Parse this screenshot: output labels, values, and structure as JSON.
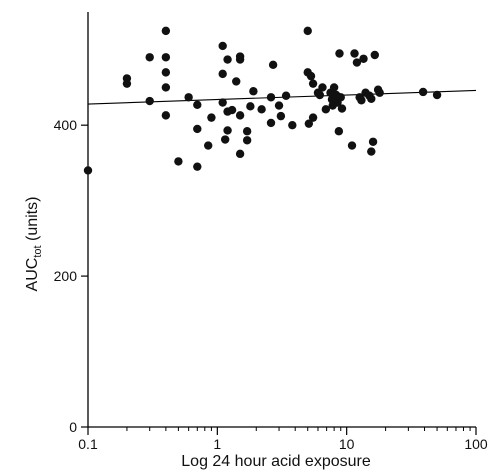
{
  "chart_data": {
    "type": "scatter",
    "xlabel": "Log 24 hour acid exposure",
    "ylabel_main": "AUC",
    "ylabel_sub": "tot",
    "ylabel_suffix": " (units)",
    "x_scale": "log",
    "xlim": [
      0.1,
      100
    ],
    "ylim": [
      0,
      550
    ],
    "x_ticks": [
      0.1,
      1,
      10,
      100
    ],
    "x_tick_labels": [
      "0.1",
      "1",
      "10",
      "100"
    ],
    "y_ticks": [
      0,
      200,
      400
    ],
    "y_tick_labels": [
      "0",
      "200",
      "400"
    ],
    "grid": false,
    "trendline": {
      "x": [
        0.1,
        100
      ],
      "y": [
        428,
        446
      ]
    },
    "points": [
      [
        0.1,
        340
      ],
      [
        0.2,
        462
      ],
      [
        0.2,
        455
      ],
      [
        0.3,
        490
      ],
      [
        0.3,
        432
      ],
      [
        0.4,
        525
      ],
      [
        0.4,
        490
      ],
      [
        0.4,
        470
      ],
      [
        0.4,
        450
      ],
      [
        0.4,
        413
      ],
      [
        0.5,
        352
      ],
      [
        0.6,
        437
      ],
      [
        0.7,
        427
      ],
      [
        0.7,
        395
      ],
      [
        0.7,
        345
      ],
      [
        0.85,
        373
      ],
      [
        0.9,
        410
      ],
      [
        1.1,
        505
      ],
      [
        1.1,
        468
      ],
      [
        1.1,
        430
      ],
      [
        1.15,
        381
      ],
      [
        1.2,
        487
      ],
      [
        1.2,
        393
      ],
      [
        1.2,
        418
      ],
      [
        1.3,
        420
      ],
      [
        1.4,
        458
      ],
      [
        1.5,
        491
      ],
      [
        1.5,
        487
      ],
      [
        1.5,
        413
      ],
      [
        1.5,
        362
      ],
      [
        1.7,
        392
      ],
      [
        1.7,
        380
      ],
      [
        1.8,
        425
      ],
      [
        1.9,
        445
      ],
      [
        2.2,
        421
      ],
      [
        2.6,
        437
      ],
      [
        2.6,
        403
      ],
      [
        2.7,
        480
      ],
      [
        3.0,
        426
      ],
      [
        3.1,
        412
      ],
      [
        3.4,
        439
      ],
      [
        3.8,
        400
      ],
      [
        5.0,
        525
      ],
      [
        5.0,
        470
      ],
      [
        5.1,
        402
      ],
      [
        5.3,
        465
      ],
      [
        5.5,
        455
      ],
      [
        5.5,
        410
      ],
      [
        6.0,
        443
      ],
      [
        6.2,
        440
      ],
      [
        6.5,
        450
      ],
      [
        6.9,
        421
      ],
      [
        7.5,
        443
      ],
      [
        7.7,
        434
      ],
      [
        7.8,
        426
      ],
      [
        8.0,
        450
      ],
      [
        8.3,
        440
      ],
      [
        8.5,
        430
      ],
      [
        8.7,
        392
      ],
      [
        8.8,
        495
      ],
      [
        8.8,
        437
      ],
      [
        9.0,
        437
      ],
      [
        9.2,
        422
      ],
      [
        11.0,
        373
      ],
      [
        11.5,
        495
      ],
      [
        12.0,
        483
      ],
      [
        12.6,
        437
      ],
      [
        13.0,
        433
      ],
      [
        13.5,
        488
      ],
      [
        14.0,
        443
      ],
      [
        15.0,
        439
      ],
      [
        15.5,
        435
      ],
      [
        15.5,
        365
      ],
      [
        16.0,
        378
      ],
      [
        16.5,
        493
      ],
      [
        17.5,
        447
      ],
      [
        18.0,
        443
      ],
      [
        39.0,
        444
      ],
      [
        50.0,
        440
      ]
    ]
  }
}
